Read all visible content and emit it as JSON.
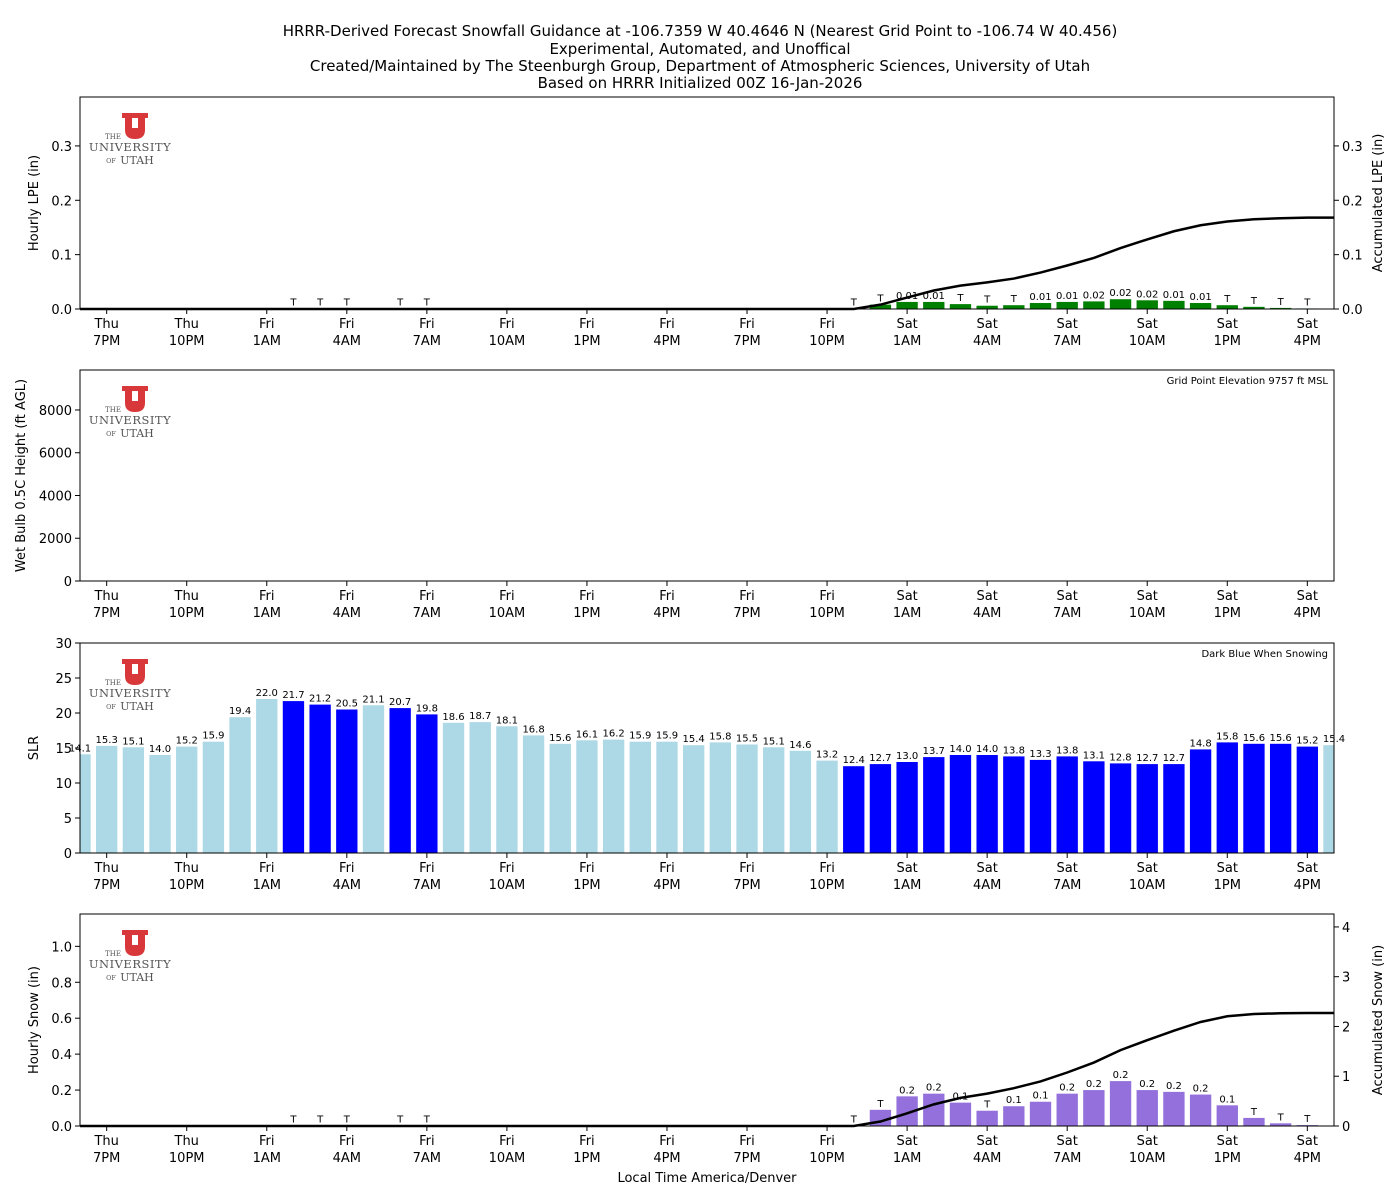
{
  "title_lines": [
    "HRRR-Derived Forecast Snowfall Guidance at -106.7359 W 40.4646 N (Nearest Grid Point to -106.74 W 40.456)",
    "Experimental, Automated, and Unoffical",
    "Created/Maintained by The Steenburgh Group, Department of Atmospheric Sciences, University of Utah",
    "Based on HRRR Initialized 00Z 16-Jan-2026"
  ],
  "xlabel": "Local Time America/Denver",
  "logo_text": {
    "the": "THE",
    "university": "UNIVERSITY",
    "of": "OF",
    "utah": "UTAH"
  },
  "colors": {
    "lpe": "#008000",
    "slr_light": "#add8e6",
    "slr_snowing": "#0000ff",
    "snow": "#9370db",
    "logo_red": "#d9383a"
  },
  "x_ticks": [
    {
      "hour_index": 1,
      "day": "Thu",
      "time": "7PM"
    },
    {
      "hour_index": 4,
      "day": "Thu",
      "time": "10PM"
    },
    {
      "hour_index": 7,
      "day": "Fri",
      "time": "1AM"
    },
    {
      "hour_index": 10,
      "day": "Fri",
      "time": "4AM"
    },
    {
      "hour_index": 13,
      "day": "Fri",
      "time": "7AM"
    },
    {
      "hour_index": 16,
      "day": "Fri",
      "time": "10AM"
    },
    {
      "hour_index": 19,
      "day": "Fri",
      "time": "1PM"
    },
    {
      "hour_index": 22,
      "day": "Fri",
      "time": "4PM"
    },
    {
      "hour_index": 25,
      "day": "Fri",
      "time": "7PM"
    },
    {
      "hour_index": 28,
      "day": "Fri",
      "time": "10PM"
    },
    {
      "hour_index": 31,
      "day": "Sat",
      "time": "1AM"
    },
    {
      "hour_index": 34,
      "day": "Sat",
      "time": "4AM"
    },
    {
      "hour_index": 37,
      "day": "Sat",
      "time": "7AM"
    },
    {
      "hour_index": 40,
      "day": "Sat",
      "time": "10AM"
    },
    {
      "hour_index": 43,
      "day": "Sat",
      "time": "1PM"
    },
    {
      "hour_index": 46,
      "day": "Sat",
      "time": "4PM"
    }
  ],
  "chart_data": [
    {
      "type": "bar",
      "ylabel": "Hourly LPE (in)",
      "ylabel_right": "Accumulated LPE (in)",
      "ylim": [
        0,
        0.39
      ],
      "ylim_right": [
        0,
        0.39
      ],
      "yticks": [
        "0.0",
        "0.1",
        "0.2",
        "0.3"
      ],
      "yticks_right": [
        "0.0",
        "0.1",
        "0.2",
        "0.3"
      ],
      "bar_color": "#008000",
      "values": [
        0,
        0,
        0,
        0,
        0,
        0,
        0,
        0,
        0.0005,
        0.0005,
        0.0005,
        0,
        0.0005,
        0.0005,
        0,
        0,
        0,
        0,
        0,
        0,
        0,
        0,
        0,
        0,
        0,
        0,
        0,
        0,
        0,
        0.0005,
        0.008,
        0.013,
        0.013,
        0.009,
        0.006,
        0.007,
        0.011,
        0.013,
        0.014,
        0.018,
        0.016,
        0.015,
        0.011,
        0.007,
        0.004,
        0.002,
        0.001,
        0
      ],
      "labels": [
        "",
        "",
        "",
        "",
        "",
        "",
        "",
        "",
        "T",
        "T",
        "T",
        "",
        "T",
        "T",
        "",
        "",
        "",
        "",
        "",
        "",
        "",
        "",
        "",
        "",
        "",
        "",
        "",
        "",
        "",
        "T",
        "T",
        "0.01",
        "0.01",
        "T",
        "T",
        "T",
        "0.01",
        "0.01",
        "0.02",
        "0.02",
        "0.02",
        "0.01",
        "0.01",
        "T",
        "T",
        "T",
        "T",
        ""
      ],
      "accumulated": [
        0,
        0,
        0,
        0,
        0,
        0,
        0,
        0,
        0,
        0,
        0,
        0,
        0,
        0,
        0,
        0,
        0,
        0,
        0,
        0,
        0,
        0,
        0,
        0,
        0,
        0,
        0,
        0,
        0,
        0,
        0.008,
        0.021,
        0.034,
        0.043,
        0.049,
        0.056,
        0.067,
        0.08,
        0.094,
        0.112,
        0.128,
        0.143,
        0.154,
        0.161,
        0.165,
        0.167,
        0.168,
        0.168
      ],
      "annotation": ""
    },
    {
      "type": "bar",
      "ylabel": "Wet Bulb 0.5C Height (ft AGL)",
      "ylim": [
        0,
        9870
      ],
      "yticks": [
        "0",
        "2000",
        "4000",
        "6000",
        "8000"
      ],
      "values": [],
      "labels": [],
      "annotation": "Grid Point Elevation 9757 ft MSL"
    },
    {
      "type": "bar",
      "ylabel": "SLR",
      "ylim": [
        0,
        30
      ],
      "yticks": [
        "0",
        "5",
        "10",
        "15",
        "20",
        "25",
        "30"
      ],
      "values": [
        14.1,
        15.3,
        15.1,
        14.0,
        15.2,
        15.9,
        19.4,
        22.0,
        21.7,
        21.2,
        20.5,
        21.1,
        20.7,
        19.8,
        18.6,
        18.7,
        18.1,
        16.8,
        15.6,
        16.1,
        16.2,
        15.9,
        15.9,
        15.4,
        15.8,
        15.5,
        15.1,
        14.6,
        13.2,
        12.4,
        12.7,
        13.0,
        13.7,
        14.0,
        14.0,
        13.8,
        13.3,
        13.8,
        13.1,
        12.8,
        12.7,
        12.7,
        14.8,
        15.8,
        15.6,
        15.6,
        15.2,
        15.4
      ],
      "labels": [
        "14.1",
        "15.3",
        "15.1",
        "14.0",
        "15.2",
        "15.9",
        "19.4",
        "22.0",
        "21.7",
        "21.2",
        "20.5",
        "21.1",
        "20.7",
        "19.8",
        "18.6",
        "18.7",
        "18.1",
        "16.8",
        "15.6",
        "16.1",
        "16.2",
        "15.9",
        "15.9",
        "15.4",
        "15.8",
        "15.5",
        "15.1",
        "14.6",
        "13.2",
        "12.4",
        "12.7",
        "13.0",
        "13.7",
        "14.0",
        "14.0",
        "13.8",
        "13.3",
        "13.8",
        "13.1",
        "12.8",
        "12.7",
        "12.7",
        "14.8",
        "15.8",
        "15.6",
        "15.6",
        "15.2",
        "15.4"
      ],
      "snowing": [
        false,
        false,
        false,
        false,
        false,
        false,
        false,
        false,
        true,
        true,
        true,
        false,
        true,
        true,
        false,
        false,
        false,
        false,
        false,
        false,
        false,
        false,
        false,
        false,
        false,
        false,
        false,
        false,
        false,
        true,
        true,
        true,
        true,
        true,
        true,
        true,
        true,
        true,
        true,
        true,
        true,
        true,
        true,
        true,
        true,
        true,
        true,
        false
      ],
      "annotation": "Dark Blue When Snowing"
    },
    {
      "type": "bar",
      "ylabel": "Hourly Snow (in)",
      "ylabel_right": "Accumulated Snow (in)",
      "ylim": [
        0,
        1.18
      ],
      "ylim_right": [
        0,
        4.26
      ],
      "yticks": [
        "0.0",
        "0.2",
        "0.4",
        "0.6",
        "0.8",
        "1.0"
      ],
      "yticks_right": [
        "0",
        "1",
        "2",
        "3",
        "4"
      ],
      "bar_color": "#9370db",
      "values": [
        0,
        0,
        0,
        0,
        0,
        0,
        0,
        0,
        0.002,
        0.002,
        0.002,
        0,
        0.002,
        0.002,
        0,
        0,
        0,
        0,
        0,
        0,
        0,
        0,
        0,
        0,
        0,
        0,
        0,
        0,
        0,
        0.002,
        0.09,
        0.165,
        0.18,
        0.13,
        0.085,
        0.11,
        0.135,
        0.18,
        0.2,
        0.25,
        0.2,
        0.19,
        0.175,
        0.115,
        0.045,
        0.015,
        0.005,
        0
      ],
      "labels": [
        "",
        "",
        "",
        "",
        "",
        "",
        "",
        "",
        "T",
        "T",
        "T",
        "",
        "T",
        "T",
        "",
        "",
        "",
        "",
        "",
        "",
        "",
        "",
        "",
        "",
        "",
        "",
        "",
        "",
        "",
        "T",
        "T",
        "0.2",
        "0.2",
        "0.1",
        "T",
        "0.1",
        "0.1",
        "0.2",
        "0.2",
        "0.2",
        "0.2",
        "0.2",
        "0.2",
        "0.1",
        "T",
        "T",
        "T",
        ""
      ],
      "accumulated": [
        0,
        0,
        0,
        0,
        0,
        0,
        0,
        0,
        0,
        0,
        0,
        0,
        0,
        0,
        0,
        0,
        0,
        0,
        0,
        0,
        0,
        0,
        0,
        0,
        0,
        0,
        0,
        0,
        0,
        0,
        0.09,
        0.255,
        0.435,
        0.565,
        0.65,
        0.76,
        0.895,
        1.075,
        1.275,
        1.525,
        1.725,
        1.915,
        2.09,
        2.205,
        2.25,
        2.265,
        2.27,
        2.27
      ],
      "annotation": ""
    }
  ]
}
